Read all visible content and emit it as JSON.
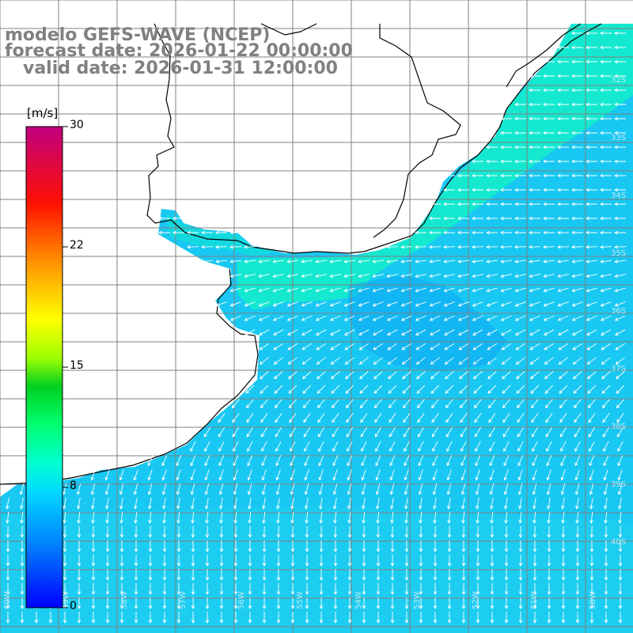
{
  "titles": {
    "model": "modelo GEFS-WAVE (NCEP)",
    "forecast": "forecast date: 2026-01-22 00:00:00",
    "valid": "valid date: 2026-01-31 12:00:00"
  },
  "colorbar": {
    "unit": "[m/s]",
    "ticks": [
      "30",
      "22",
      "15",
      "8",
      "0"
    ],
    "max_value": 30,
    "colors": [
      "#0000ff",
      "#0096ff",
      "#00e6ff",
      "#00ff80",
      "#00cc00",
      "#ffff00",
      "#ff8000",
      "#ff0000",
      "#c00060",
      "#b00080"
    ]
  },
  "latitude_labels": [
    "32S",
    "33S",
    "34S",
    "35S",
    "36S",
    "37S",
    "38S",
    "39S",
    "40S"
  ],
  "longitude_labels": [
    "60W",
    "59W",
    "58W",
    "57W",
    "56W",
    "55W",
    "54W",
    "53W",
    "52W",
    "51W",
    "50W"
  ],
  "colors": {
    "ocean_nearshore": "#12f0c0",
    "ocean_mid": "#10c4f0",
    "ocean_offshore": "#16b4f4",
    "land": "#ffffff",
    "coastline": "#000000",
    "grid": "#808080",
    "arrows": "#ffffff"
  }
}
